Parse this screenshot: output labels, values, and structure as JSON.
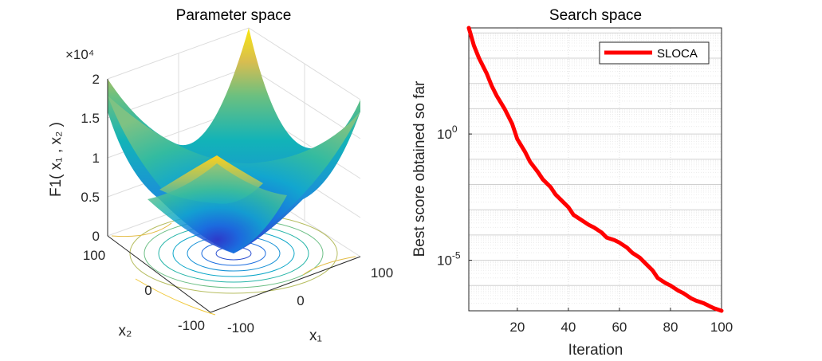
{
  "left_plot": {
    "title": "Parameter space",
    "z_label": "F1( x₁ , x₂ )",
    "x_label": "x₁",
    "y_label": "x₂",
    "z_exponent": "×10⁴",
    "z_ticks": [
      "2",
      "1.5",
      "1",
      "0.5",
      "0"
    ],
    "x_ticks": [
      "-100",
      "0",
      "100"
    ],
    "y_ticks": [
      "100",
      "0",
      "-100"
    ],
    "colormap": [
      "#352a87",
      "#0f5cdd",
      "#1481d6",
      "#06a4ca",
      "#2eb7a4",
      "#87bf77",
      "#d1bb59",
      "#fec832",
      "#f9fb0e"
    ]
  },
  "chart_data": {
    "type": "line",
    "title": "Search space",
    "xlabel": "Iteration",
    "ylabel": "Best score obtained so far",
    "yscale": "log",
    "xlim": [
      1,
      100
    ],
    "ylim_log10": [
      -7,
      4.2
    ],
    "x_ticks": [
      20,
      40,
      60,
      80,
      100
    ],
    "y_ticks": [
      {
        "label": "10",
        "exp": "0",
        "value": 1
      },
      {
        "label": "10",
        "exp": "-5",
        "value": 1e-05
      }
    ],
    "grid": true,
    "legend": "top-right",
    "series": [
      {
        "name": "SLOCA",
        "color": "#ff0000",
        "x": [
          1,
          3,
          5,
          8,
          10,
          12,
          15,
          18,
          20,
          23,
          25,
          28,
          30,
          33,
          35,
          38,
          40,
          42,
          45,
          48,
          50,
          53,
          55,
          58,
          60,
          63,
          65,
          68,
          70,
          73,
          75,
          78,
          80,
          83,
          85,
          88,
          90,
          93,
          95,
          97,
          100
        ],
        "log10_y": [
          4.2,
          3.5,
          3.0,
          2.4,
          1.9,
          1.5,
          1.0,
          0.4,
          -0.2,
          -0.7,
          -1.1,
          -1.5,
          -1.8,
          -2.1,
          -2.4,
          -2.7,
          -2.9,
          -3.2,
          -3.4,
          -3.6,
          -3.7,
          -3.9,
          -4.1,
          -4.2,
          -4.3,
          -4.5,
          -4.7,
          -4.9,
          -5.1,
          -5.4,
          -5.7,
          -5.9,
          -6.0,
          -6.2,
          -6.3,
          -6.5,
          -6.6,
          -6.7,
          -6.8,
          -6.9,
          -7.0
        ]
      }
    ]
  }
}
